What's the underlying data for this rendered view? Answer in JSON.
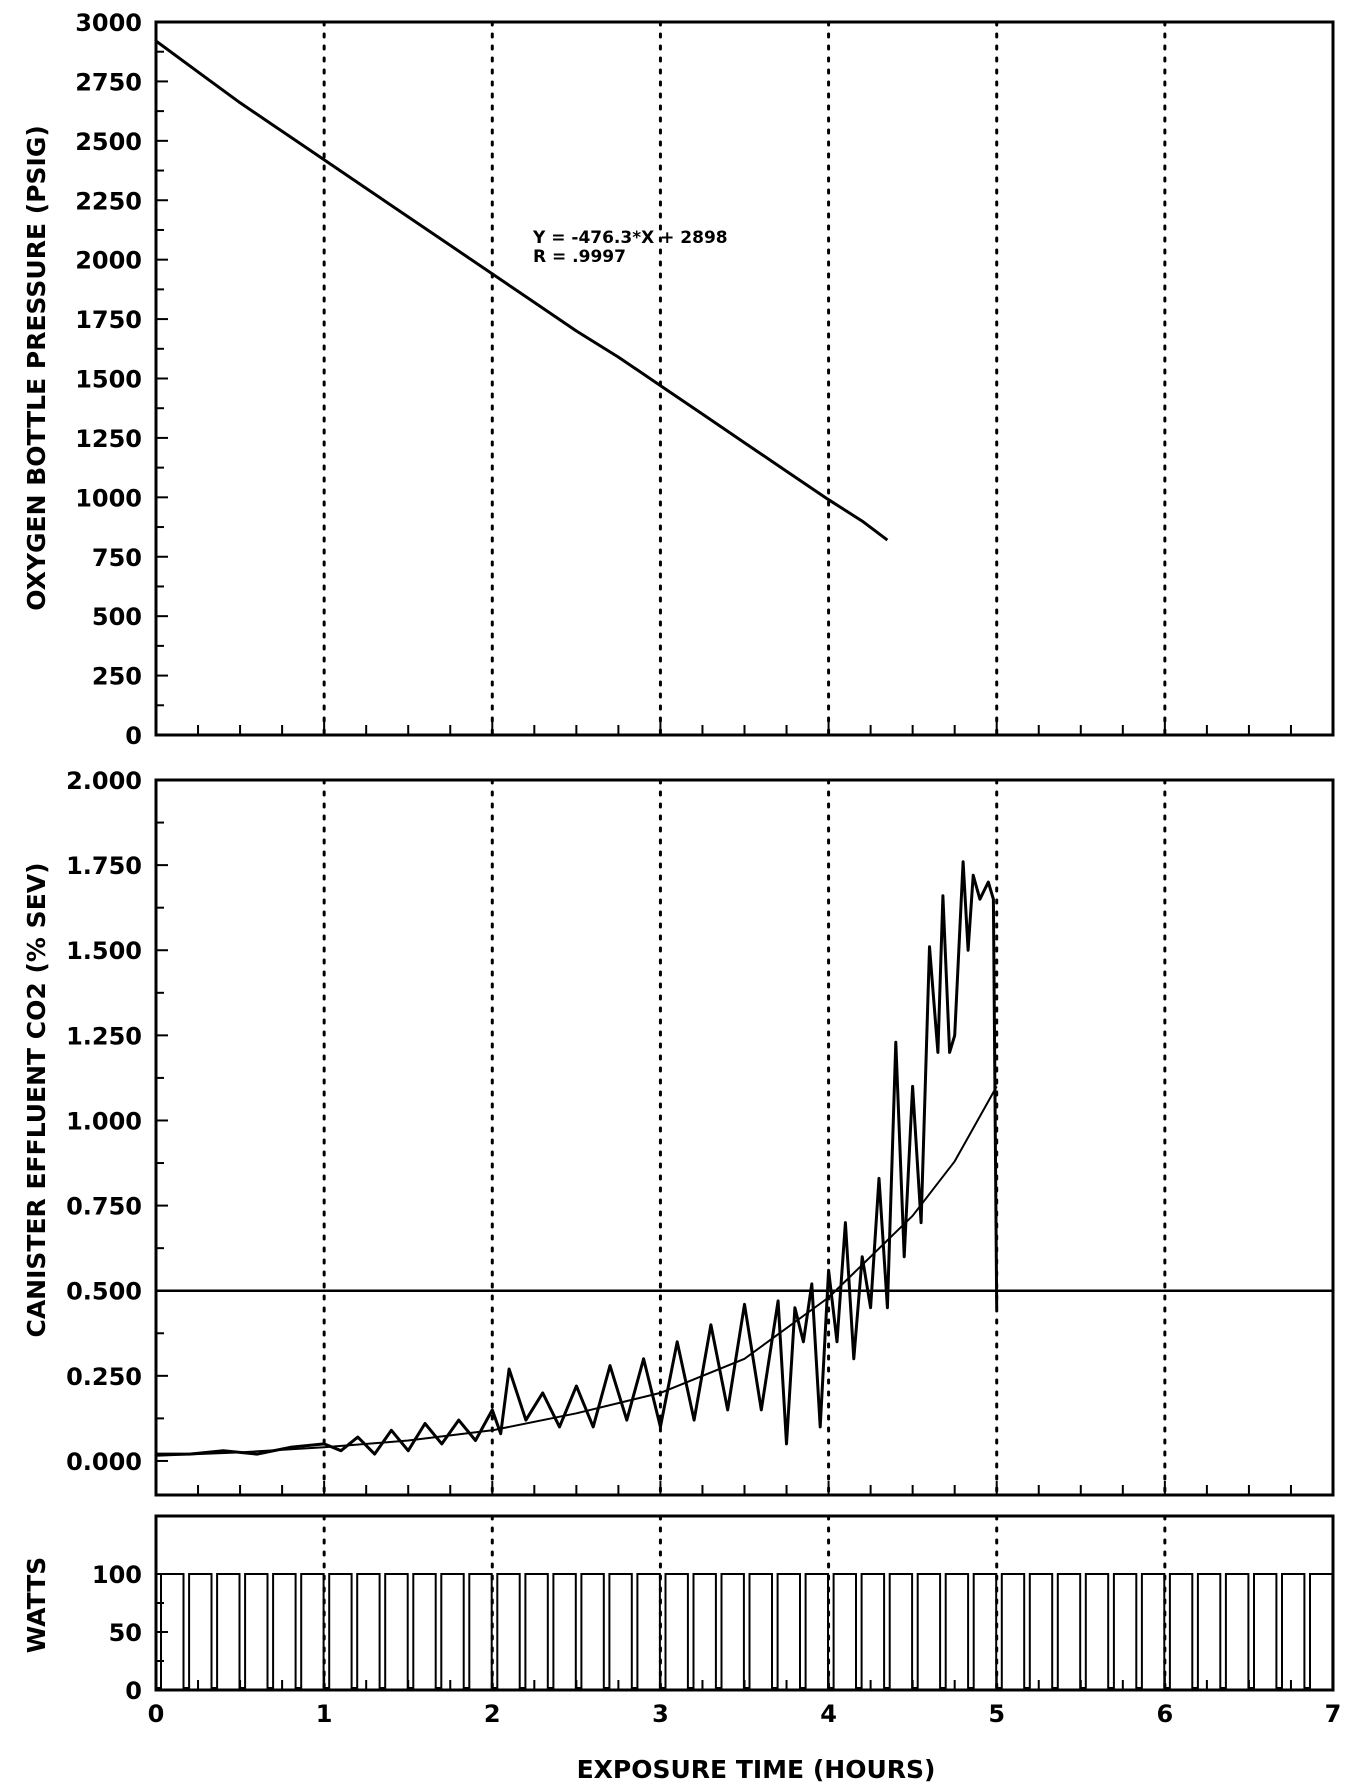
{
  "chart_data": [
    {
      "type": "line",
      "panel": "top",
      "ylabel": "OXYGEN BOTTLE PRESSURE (PSIG)",
      "xlabel": "",
      "xlim": [
        0,
        7
      ],
      "ylim": [
        0,
        3000
      ],
      "y_ticks": [
        "0",
        "250",
        "500",
        "750",
        "1000",
        "1250",
        "1500",
        "1750",
        "2000",
        "2250",
        "2500",
        "2750",
        "3000"
      ],
      "grid": "dotted vertical lines at x = 1..6",
      "annotations": [
        "Y = -476.3*X + 2898",
        "R = .9997"
      ],
      "series": [
        {
          "x": [
            0,
            0.25,
            0.5,
            0.75,
            1.0,
            1.25,
            1.5,
            1.75,
            2.0,
            2.25,
            2.5,
            2.75,
            3.0,
            3.25,
            3.5,
            3.75,
            4.0,
            4.2,
            4.35
          ],
          "y": [
            2920,
            2790,
            2660,
            2540,
            2420,
            2300,
            2180,
            2060,
            1940,
            1820,
            1700,
            1590,
            1470,
            1350,
            1230,
            1110,
            990,
            900,
            820
          ]
        }
      ]
    },
    {
      "type": "line",
      "panel": "middle",
      "ylabel": "CANISTER EFFLUENT CO2 (% SEV)",
      "xlim": [
        0,
        7
      ],
      "ylim": [
        -0.1,
        2.0
      ],
      "y_ticks": [
        "0.000",
        "0.250",
        "0.500",
        "0.750",
        "1.000",
        "1.250",
        "1.500",
        "1.750",
        "2.000"
      ],
      "grid": "dotted vertical lines at x = 1..6",
      "reference_line": 0.5,
      "series": [
        {
          "x": [
            0,
            0.2,
            0.4,
            0.6,
            0.8,
            1.0,
            1.1,
            1.2,
            1.3,
            1.4,
            1.5,
            1.6,
            1.7,
            1.8,
            1.9,
            2.0,
            2.05,
            2.1,
            2.2,
            2.3,
            2.4,
            2.5,
            2.6,
            2.7,
            2.8,
            2.9,
            3.0,
            3.1,
            3.2,
            3.3,
            3.4,
            3.5,
            3.6,
            3.7,
            3.75,
            3.8,
            3.85,
            3.9,
            3.95,
            4.0,
            4.05,
            4.1,
            4.15,
            4.2,
            4.25,
            4.3,
            4.35,
            4.4,
            4.45,
            4.5,
            4.55,
            4.6,
            4.65,
            4.68,
            4.72,
            4.75,
            4.8,
            4.83,
            4.86,
            4.9,
            4.95,
            4.98,
            5.0
          ],
          "y": [
            0.02,
            0.02,
            0.03,
            0.02,
            0.04,
            0.05,
            0.03,
            0.07,
            0.02,
            0.09,
            0.03,
            0.11,
            0.05,
            0.12,
            0.06,
            0.15,
            0.08,
            0.27,
            0.12,
            0.2,
            0.1,
            0.22,
            0.1,
            0.28,
            0.12,
            0.3,
            0.1,
            0.35,
            0.12,
            0.4,
            0.15,
            0.46,
            0.15,
            0.47,
            0.05,
            0.45,
            0.35,
            0.52,
            0.1,
            0.56,
            0.35,
            0.7,
            0.3,
            0.6,
            0.45,
            0.83,
            0.45,
            1.23,
            0.6,
            1.1,
            0.7,
            1.51,
            1.2,
            1.66,
            1.2,
            1.25,
            1.76,
            1.5,
            1.72,
            1.65,
            1.7,
            1.65,
            0.45
          ]
        },
        {
          "x": [
            0,
            0.5,
            1.0,
            1.5,
            2.0,
            2.5,
            3.0,
            3.5,
            4.0,
            4.25,
            4.5,
            4.75,
            5.0
          ],
          "y": [
            0.015,
            0.025,
            0.04,
            0.06,
            0.09,
            0.14,
            0.2,
            0.3,
            0.48,
            0.6,
            0.72,
            0.88,
            1.1
          ]
        }
      ]
    },
    {
      "type": "line",
      "panel": "bottom",
      "ylabel": "WATTS",
      "xlabel": "EXPOSURE TIME (HOURS)",
      "xlim": [
        0,
        7
      ],
      "ylim": [
        0,
        150
      ],
      "y_ticks": [
        "0",
        "50",
        "100"
      ],
      "x_ticks": [
        "0",
        "1",
        "2",
        "3",
        "4",
        "5",
        "6",
        "7"
      ],
      "grid": "dotted vertical lines at x = 1..6",
      "pulse_count": 42,
      "pulse_height": 100
    }
  ]
}
